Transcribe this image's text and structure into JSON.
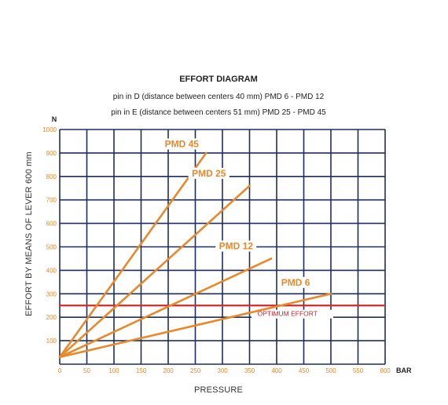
{
  "chart_data": {
    "type": "line",
    "title": "EFFORT DIAGRAM",
    "subtitle": [
      "pin in D (distance between centers 40 mm) PMD 6 - PMD 12",
      "pin in E (distance between centers 51 mm) PMD 25 - PMD 45"
    ],
    "xlabel": "PRESSURE",
    "xunit": "BAR",
    "ylabel": "EFFORT BY MEANS OF LEVER 600 mm",
    "yunit": "N",
    "xlim": [
      0,
      600
    ],
    "ylim": [
      0,
      1000
    ],
    "xticks": [
      "0",
      "50",
      "100",
      "150",
      "200",
      "250",
      "300",
      "350",
      "400",
      "450",
      "500",
      "550",
      "600"
    ],
    "yticks": [
      "1000",
      "900",
      "800",
      "700",
      "600",
      "500",
      "400",
      "300",
      "200",
      "100"
    ],
    "grid": true,
    "series": [
      {
        "name": "PMD 45",
        "x": [
          0,
          270
        ],
        "y": [
          30,
          900
        ]
      },
      {
        "name": "PMD 25",
        "x": [
          0,
          350
        ],
        "y": [
          30,
          760
        ]
      },
      {
        "name": "PMD 12",
        "x": [
          0,
          390
        ],
        "y": [
          30,
          450
        ]
      },
      {
        "name": "PMD 6",
        "x": [
          0,
          500
        ],
        "y": [
          30,
          300
        ]
      }
    ],
    "reference_line": {
      "name": "OPTIMUM EFFORT",
      "y": 250
    }
  },
  "colors": {
    "series": "#e8892b",
    "grid": "#1f2d5c",
    "reference": "#d42a2a",
    "tick_labels": "#e8892b"
  }
}
